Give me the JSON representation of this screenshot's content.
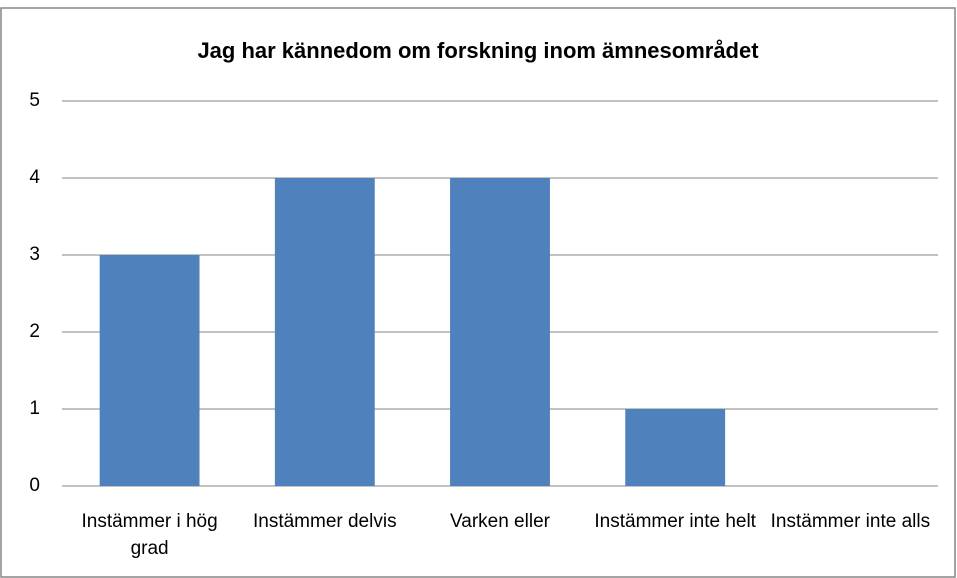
{
  "chart_data": {
    "type": "bar",
    "title": "Jag har kännedom om forskning inom ämnesområdet",
    "categories": [
      "Instämmer i hög grad",
      "Instämmer delvis",
      "Varken eller",
      "Instämmer inte helt",
      "Instämmer inte alls"
    ],
    "values": [
      3,
      4,
      4,
      1,
      0
    ],
    "color": "#4f81bd",
    "ylim": [
      0,
      5
    ],
    "yticks": [
      0,
      1,
      2,
      3,
      4,
      5
    ],
    "grid": true
  }
}
